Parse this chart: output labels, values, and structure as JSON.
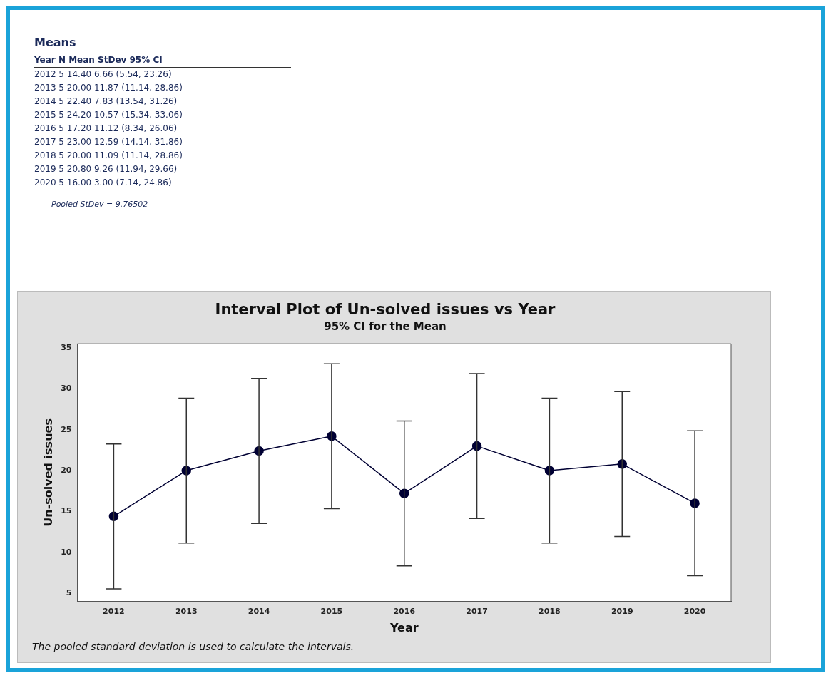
{
  "chart_data": {
    "type": "line",
    "title": "Interval Plot of Un-solved issues vs Year",
    "subtitle": "95% CI for the Mean",
    "xlabel": "Year",
    "ylabel": "Un-solved issues",
    "categories": [
      "2012",
      "2013",
      "2014",
      "2015",
      "2016",
      "2017",
      "2018",
      "2019",
      "2020"
    ],
    "series": [
      {
        "color": "#000033",
        "values": [
          14.4,
          20.0,
          22.4,
          24.2,
          17.2,
          23.0,
          20.0,
          20.8,
          16.0
        ],
        "errors": [
          [
            5.54,
            23.26
          ],
          [
            11.14,
            28.86
          ],
          [
            13.54,
            31.26
          ],
          [
            15.34,
            33.06
          ],
          [
            8.34,
            26.06
          ],
          [
            14.14,
            31.86
          ],
          [
            11.14,
            28.86
          ],
          [
            11.94,
            29.66
          ],
          [
            7.14,
            24.86
          ]
        ]
      }
    ],
    "ylim": [
      4,
      35.5
    ],
    "yticks": [
      5,
      10,
      15,
      20,
      25,
      30,
      35
    ],
    "grid": false,
    "legend": false,
    "marker": "circle",
    "line_style": "solid",
    "annotations": [
      "Means",
      "Year N Mean StDev 95% CI",
      "2012 5 14.40 6.66 (5.54, 23.26)",
      "2013 5 20.00 11.87 (11.14, 28.86)",
      "2014 5 22.40 7.83 (13.54, 31.26)",
      "2015 5 24.20 10.57 (15.34, 33.06)",
      "2016 5 17.20 11.12 (8.34, 26.06)",
      "2017 5 23.00 12.59 (14.14, 31.86)",
      "2018 5 20.00 11.09 (11.14, 28.86)",
      "2019 5 20.80 9.26 (11.94, 29.66)",
      "2020 5 16.00 3.00 (7.14, 24.86)",
      "Pooled StDev = 9.76502",
      "The pooled standard deviation is used to calculate the intervals."
    ]
  }
}
